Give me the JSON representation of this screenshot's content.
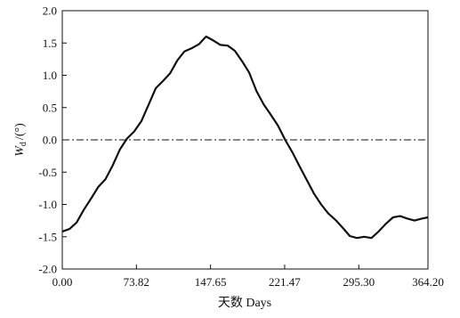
{
  "chart_data": {
    "type": "line",
    "xlabel": "天数 Days",
    "ylabel": "W",
    "ylabel_subscript": "d",
    "ylabel_unit": "/(°)",
    "xlim": [
      0,
      364.2
    ],
    "ylim": [
      -2.0,
      2.0
    ],
    "x_ticks": [
      0,
      73.82,
      147.65,
      221.47,
      295.3,
      364.2
    ],
    "x_tick_labels": [
      "0.00",
      "73.82",
      "147.65",
      "221.47",
      "295.30",
      "364.20"
    ],
    "y_ticks": [
      -2.0,
      -1.5,
      -1.0,
      -0.5,
      0.0,
      0.5,
      1.0,
      1.5,
      2.0
    ],
    "y_tick_labels": [
      "-2.0",
      "-1.5",
      "-1.0",
      "-0.5",
      "0.0",
      "0.5",
      "1.0",
      "1.5",
      "2.0"
    ],
    "grid": false,
    "reference_line": {
      "y": 0.0,
      "style": "dash-dot"
    },
    "series": [
      {
        "color": "#111111",
        "x": [
          0,
          7.2,
          14.3,
          21.5,
          28.6,
          35.8,
          43.0,
          50.1,
          57.3,
          64.4,
          71.6,
          78.8,
          85.9,
          93.1,
          100.2,
          107.4,
          114.6,
          121.7,
          128.9,
          136.0,
          143.2,
          150.4,
          157.5,
          164.7,
          171.8,
          179.0,
          186.2,
          193.3,
          200.5,
          207.6,
          214.8,
          222.0,
          229.1,
          236.3,
          243.4,
          250.6,
          257.8,
          264.9,
          272.1,
          279.2,
          286.4,
          293.6,
          300.7,
          307.9,
          315.0,
          322.2,
          329.4,
          336.5,
          343.7,
          350.8,
          358.0,
          364.2
        ],
        "y": [
          -1.42,
          -1.38,
          -1.28,
          -1.08,
          -0.91,
          -0.73,
          -0.61,
          -0.4,
          -0.15,
          0.02,
          0.13,
          0.29,
          0.54,
          0.8,
          0.91,
          1.03,
          1.23,
          1.37,
          1.42,
          1.48,
          1.6,
          1.54,
          1.47,
          1.46,
          1.38,
          1.22,
          1.04,
          0.76,
          0.55,
          0.39,
          0.22,
          0.0,
          -0.19,
          -0.41,
          -0.62,
          -0.83,
          -1.0,
          -1.14,
          -1.24,
          -1.36,
          -1.49,
          -1.52,
          -1.5,
          -1.52,
          -1.42,
          -1.3,
          -1.2,
          -1.18,
          -1.22,
          -1.25,
          -1.22,
          -1.2
        ]
      }
    ]
  }
}
